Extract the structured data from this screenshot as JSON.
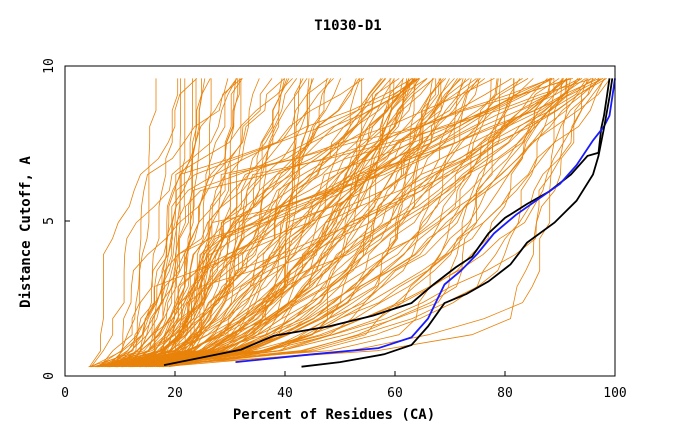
{
  "chart_data": {
    "type": "line",
    "title": "T1030-D1",
    "xlabel": "Percent of Residues (CA)",
    "ylabel": "Distance Cutoff, A",
    "xlim": [
      0,
      100
    ],
    "ylim": [
      0,
      10
    ],
    "x_ticks": [
      "0",
      "20",
      "40",
      "60",
      "80",
      "100"
    ],
    "y_ticks": [
      "0",
      "5",
      "10"
    ],
    "grid": false,
    "legend": "none",
    "colors": {
      "orange": "#e8820a",
      "black": "#000000",
      "blue": "#1a1aff"
    },
    "highlighted_series": [
      {
        "color": "black",
        "points": [
          [
            18,
            0.35
          ],
          [
            25,
            0.6
          ],
          [
            32,
            0.85
          ],
          [
            38,
            1.3
          ],
          [
            48,
            1.6
          ],
          [
            56,
            1.95
          ],
          [
            63,
            2.35
          ],
          [
            67,
            2.95
          ],
          [
            71,
            3.5
          ],
          [
            74,
            3.85
          ],
          [
            77,
            4.6
          ],
          [
            80,
            5.1
          ],
          [
            84,
            5.55
          ],
          [
            88,
            5.95
          ],
          [
            92,
            6.5
          ],
          [
            95,
            7.1
          ],
          [
            97,
            7.2
          ],
          [
            97.5,
            8.0
          ],
          [
            98,
            8.4
          ],
          [
            98.5,
            9.0
          ],
          [
            99,
            9.6
          ]
        ]
      },
      {
        "color": "blue",
        "points": [
          [
            31,
            0.45
          ],
          [
            45,
            0.7
          ],
          [
            57,
            0.9
          ],
          [
            63,
            1.25
          ],
          [
            66,
            1.85
          ],
          [
            69,
            2.95
          ],
          [
            72,
            3.4
          ],
          [
            75,
            3.95
          ],
          [
            78,
            4.6
          ],
          [
            82,
            5.2
          ],
          [
            86,
            5.7
          ],
          [
            90,
            6.2
          ],
          [
            93,
            6.8
          ],
          [
            96,
            7.6
          ],
          [
            98,
            8.05
          ],
          [
            99,
            8.4
          ],
          [
            99.5,
            9.0
          ],
          [
            100,
            9.6
          ]
        ]
      },
      {
        "color": "black",
        "points": [
          [
            43,
            0.3
          ],
          [
            50,
            0.45
          ],
          [
            58,
            0.7
          ],
          [
            63,
            1.0
          ],
          [
            66,
            1.6
          ],
          [
            69,
            2.35
          ],
          [
            73,
            2.65
          ],
          [
            77,
            3.05
          ],
          [
            81,
            3.6
          ],
          [
            84,
            4.3
          ],
          [
            89,
            4.95
          ],
          [
            93,
            5.65
          ],
          [
            96,
            6.5
          ],
          [
            97,
            7.1
          ],
          [
            98,
            8.0
          ],
          [
            99,
            9.0
          ],
          [
            99.5,
            9.6
          ]
        ]
      }
    ]
  }
}
